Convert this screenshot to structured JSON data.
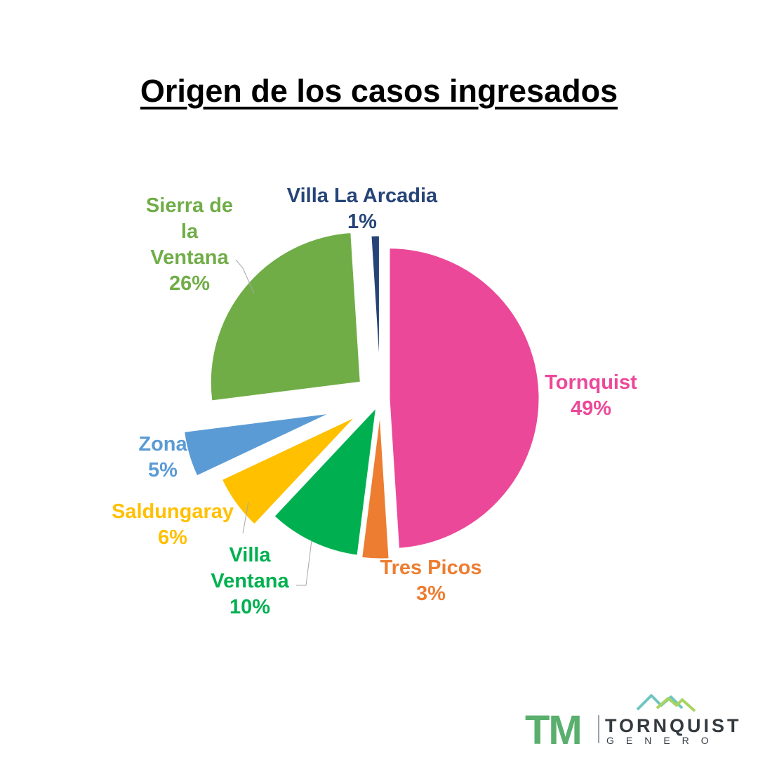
{
  "chart_data": {
    "type": "pie",
    "title": "Origen de los casos ingresados",
    "slices": [
      {
        "name": "Tornquist",
        "value": 49,
        "label": "49%",
        "color": "#ec4899"
      },
      {
        "name": "Tres Picos",
        "value": 3,
        "label": "3%",
        "color": "#ed7d31"
      },
      {
        "name": "Villa Ventana",
        "value": 10,
        "label": "10%",
        "color": "#00b050"
      },
      {
        "name": "Saldungaray",
        "value": 6,
        "label": "6%",
        "color": "#ffc000"
      },
      {
        "name": "Zona",
        "value": 5,
        "label": "5%",
        "color": "#5b9bd5"
      },
      {
        "name": "Sierra de la Ventana",
        "value": 26,
        "label": "26%",
        "color": "#70ad47"
      },
      {
        "name": "Villa La Arcadia",
        "value": 1,
        "label": "1%",
        "color": "#264478"
      }
    ],
    "legend": "none",
    "data_labels": "outside"
  },
  "logo": {
    "initials": "TM",
    "name": "TORNQUIST",
    "subtitle": "GENERO",
    "icon": "mountains-icon",
    "colors": [
      "#5aaf6e",
      "#6fc6c0",
      "#a8d45f",
      "#333a40"
    ]
  }
}
